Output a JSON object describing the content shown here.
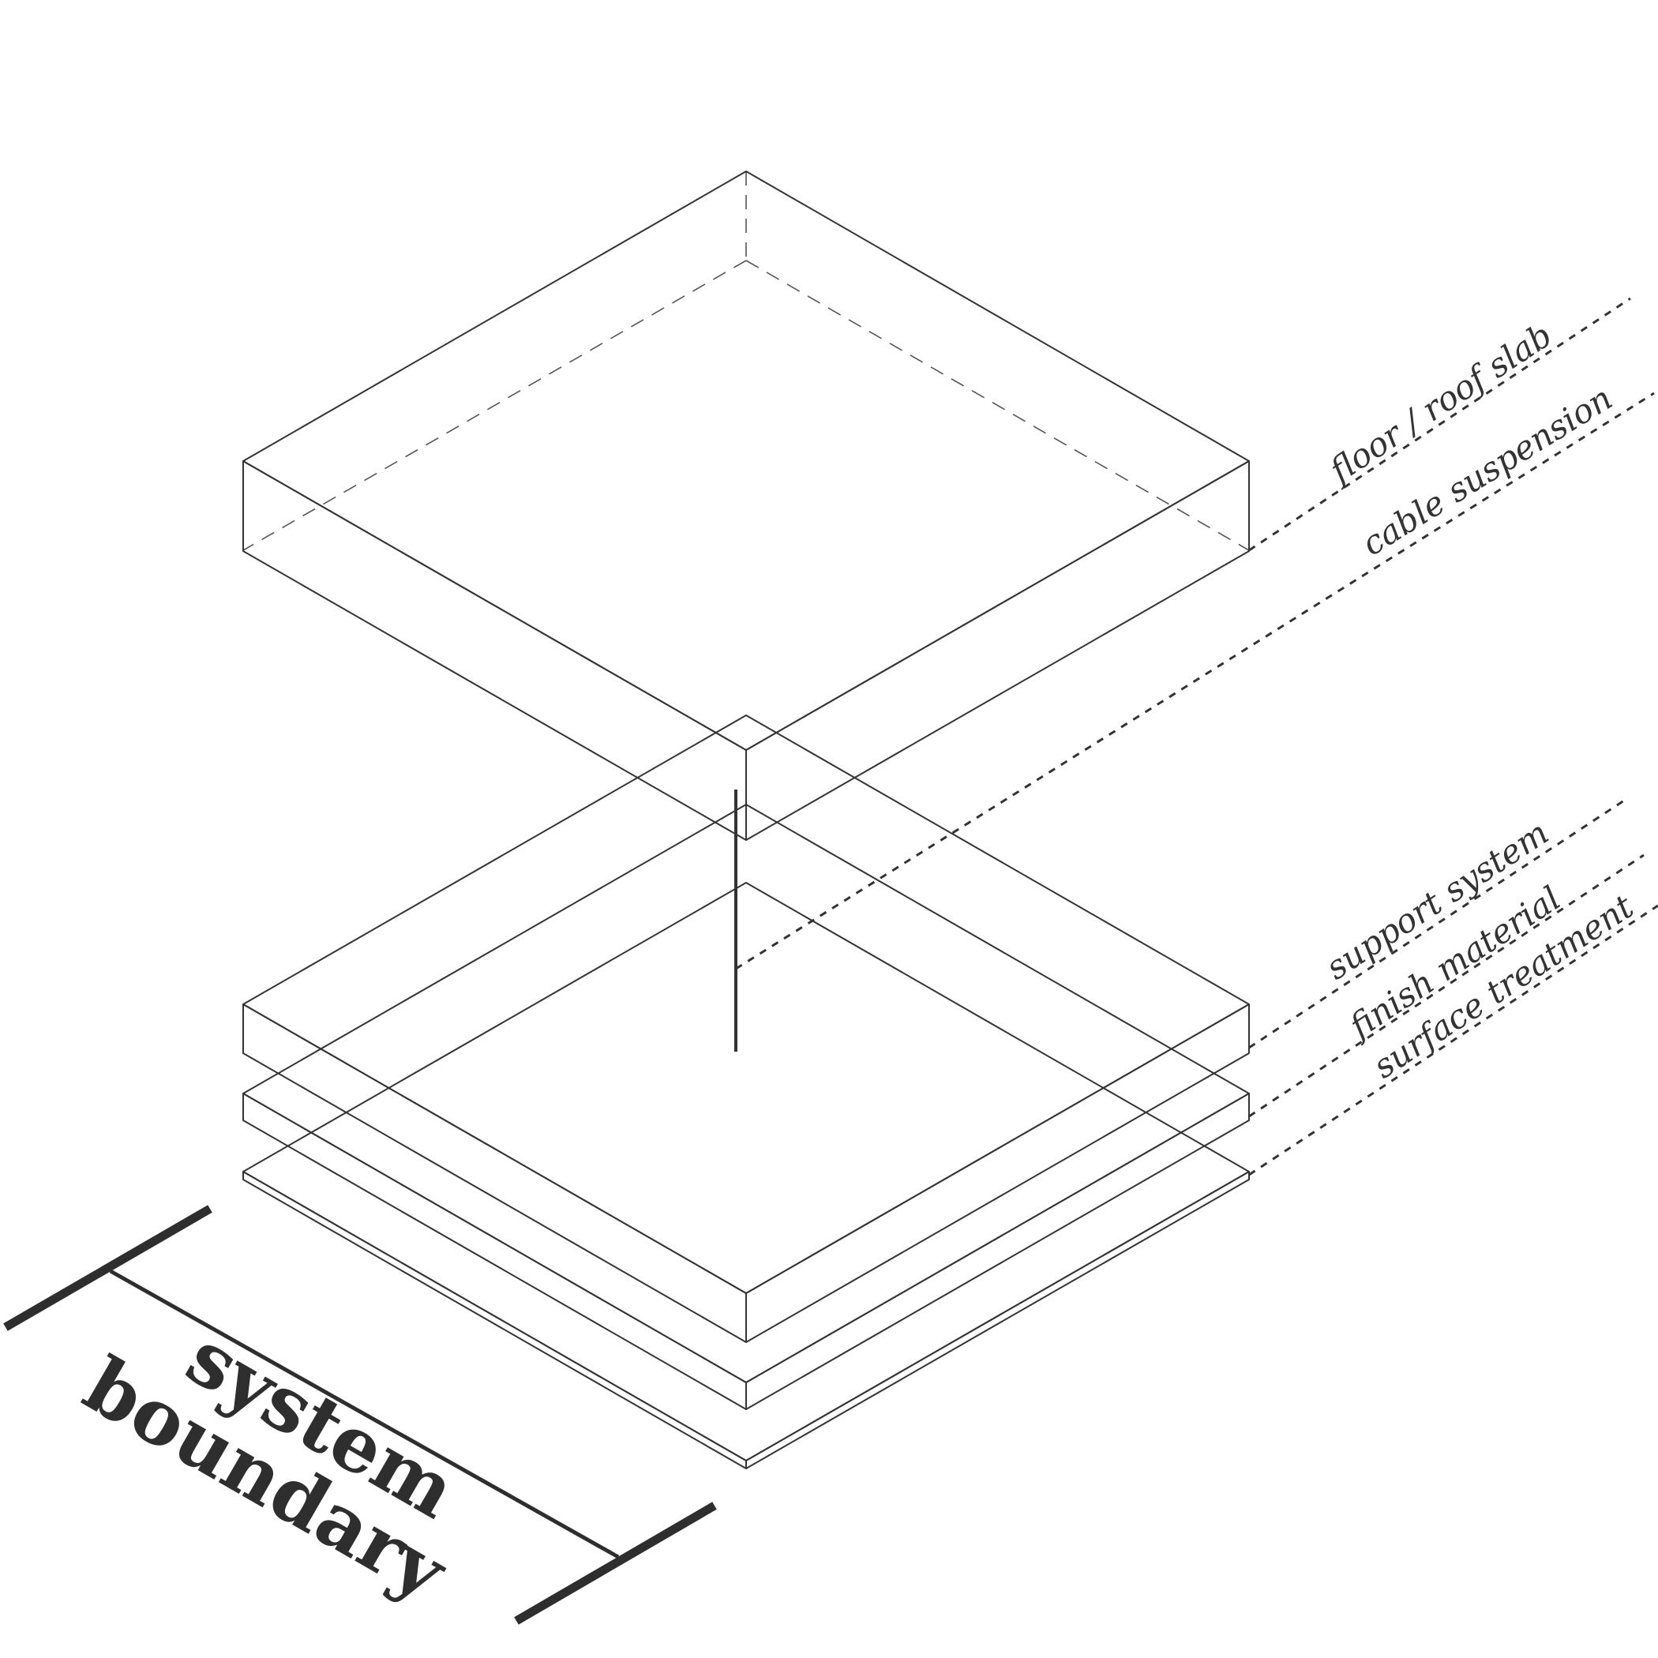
{
  "diagram": {
    "colors": {
      "support_system": "#4169E1",
      "finish_material": "#88E3BF",
      "surface_treatment": "#CCCCCC",
      "slab": "#FFFFFF",
      "line": "#333333"
    },
    "labels": {
      "floor_roof_slab": "floor / roof slab",
      "cable_suspension": "cable suspension",
      "support_system": "support system",
      "finish_material": "finish material",
      "surface_treatment": "surface treatment"
    },
    "boundary": {
      "line1": "system",
      "line2": "boundary"
    }
  }
}
